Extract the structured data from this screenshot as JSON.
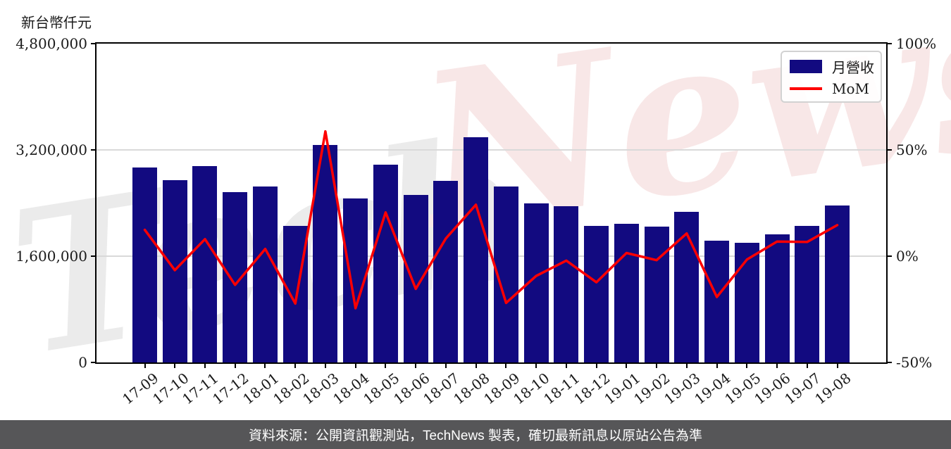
{
  "unit_label": "新台幣仟元",
  "watermark": {
    "part1": "Tech",
    "part2": "News"
  },
  "legend": {
    "bar_label": "月營收",
    "line_label": "MoM"
  },
  "footer": {
    "text": "資料來源：公開資訊觀測站，TechNews 製表，確切最新訊息以原站公告為準"
  },
  "colors": {
    "bar": "#120a80",
    "line": "#fe0000",
    "grid": "#d9d9d9",
    "footer_bg": "#565658",
    "watermark_gray": "#ebebeb",
    "watermark_pink": "#f8e7e7"
  },
  "chart_data": {
    "type": "bar",
    "title": "",
    "categories": [
      "17-09",
      "17-10",
      "17-11",
      "17-12",
      "18-01",
      "18-02",
      "18-03",
      "18-04",
      "18-05",
      "18-06",
      "18-07",
      "18-08",
      "18-09",
      "18-10",
      "18-11",
      "18-12",
      "19-01",
      "19-02",
      "19-03",
      "19-04",
      "19-05",
      "19-06",
      "19-07",
      "19-08"
    ],
    "series": [
      {
        "name": "月營收",
        "type": "bar",
        "axis": "left",
        "unit": "新台幣仟元",
        "values": [
          2930000,
          2740000,
          2960000,
          2560000,
          2650000,
          2060000,
          3270000,
          2470000,
          2980000,
          2520000,
          2730000,
          3390000,
          2645000,
          2400000,
          2350000,
          2060000,
          2090000,
          2050000,
          2270000,
          1835000,
          1805000,
          1930000,
          2060000,
          2360000
        ]
      },
      {
        "name": "MoM",
        "type": "line",
        "axis": "right",
        "unit": "%",
        "values": [
          12.4,
          -6.6,
          8.0,
          -13.5,
          3.4,
          -22.3,
          58.7,
          -24.5,
          20.6,
          -15.4,
          8.3,
          24.2,
          -22.0,
          -9.3,
          -2.1,
          -12.3,
          1.5,
          -1.9,
          10.7,
          -19.2,
          -1.6,
          6.9,
          6.7,
          14.6
        ]
      }
    ],
    "left_axis": {
      "title": "新台幣仟元",
      "min": 0,
      "max": 4800000,
      "tick_values": [
        4800000,
        3200000,
        1600000,
        0
      ],
      "tick_labels": [
        "4,800,000",
        "3,200,000",
        "1,600,000",
        "0"
      ]
    },
    "right_axis": {
      "min": -50,
      "max": 100,
      "tick_values": [
        100,
        50,
        0,
        -50
      ],
      "tick_labels": [
        "100%",
        "50%",
        "0%",
        "-50%"
      ]
    },
    "grid": {
      "horizontal_values": [
        3200000,
        1600000
      ]
    },
    "legend_position": "top-right"
  }
}
